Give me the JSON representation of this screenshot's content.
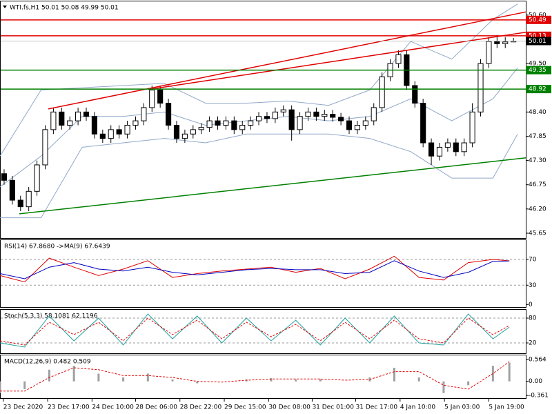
{
  "chart_data": [
    {
      "type": "candlestick",
      "title": "WTI.fs,H1  50.01 50.08 49.99 50.01",
      "xlim": [
        0,
        64
      ],
      "ylim": [
        45.54,
        50.91
      ],
      "yticks": [
        45.65,
        {
          "value": 46.2,
          "label": "46.20"
        },
        46.75,
        {
          "value": 47.3,
          "label": "47.30"
        },
        47.85,
        {
          "value": 48.4,
          "label": "48.40"
        },
        {
          "value": 49.5,
          "label": "49.50"
        },
        {
          "value": 50.6,
          "label": "50.60"
        }
      ],
      "xticks": [
        {
          "value": 0.4,
          "label": "23 Dec 2020"
        },
        {
          "value": 5.8,
          "label": "23 Dec 17:00"
        },
        {
          "value": 11.2,
          "label": "24 Dec 10:00"
        },
        {
          "value": 16.5,
          "label": "28 Dec 06:00"
        },
        {
          "value": 21.9,
          "label": "28 Dec 22:00"
        },
        {
          "value": 27.3,
          "label": "29 Dec 15:00"
        },
        {
          "value": 32.7,
          "label": "30 Dec 08:00"
        },
        {
          "value": 38.0,
          "label": "31 Dec 01:00"
        },
        {
          "value": 43.3,
          "label": "31 Dec 17:00"
        },
        {
          "value": 48.7,
          "label": "4 Jan 10:00"
        },
        {
          "value": 54.1,
          "label": "5 Jan 03:00"
        },
        {
          "value": 59.5,
          "label": "5 Jan 19:00"
        }
      ],
      "open": [
        47.0,
        46.85,
        46.4,
        46.25,
        46.6,
        47.2,
        48.0,
        48.4,
        48.1,
        48.2,
        48.4,
        48.3,
        47.9,
        47.8,
        48.0,
        47.9,
        48.1,
        48.2,
        48.5,
        48.9,
        48.6,
        48.1,
        47.8,
        47.9,
        48.0,
        48.05,
        48.2,
        48.1,
        48.2,
        48.0,
        48.1,
        48.2,
        48.3,
        48.25,
        48.4,
        48.45,
        48.0,
        48.3,
        48.4,
        48.3,
        48.35,
        48.28,
        48.2,
        48.0,
        48.1,
        48.2,
        48.5,
        49.2,
        49.5,
        49.7,
        49.0,
        48.6,
        47.7,
        47.4,
        47.6,
        47.7,
        47.5,
        47.7,
        48.4,
        49.5,
        50.0,
        49.95,
        49.99
      ],
      "high": [
        47.1,
        46.95,
        46.5,
        46.7,
        47.3,
        48.1,
        48.5,
        48.5,
        48.3,
        48.5,
        48.5,
        48.4,
        48.0,
        48.1,
        48.1,
        48.2,
        48.3,
        48.6,
        49.0,
        49.0,
        48.7,
        48.2,
        48.0,
        48.1,
        48.15,
        48.3,
        48.3,
        48.3,
        48.3,
        48.2,
        48.3,
        48.4,
        48.4,
        48.5,
        48.55,
        48.55,
        48.4,
        48.5,
        48.5,
        48.45,
        48.45,
        48.38,
        48.3,
        48.2,
        48.3,
        48.6,
        49.3,
        49.6,
        49.8,
        49.8,
        49.1,
        48.7,
        47.8,
        47.7,
        47.8,
        47.8,
        47.8,
        48.6,
        49.6,
        50.1,
        50.15,
        50.1,
        50.08
      ],
      "low": [
        46.75,
        46.3,
        46.15,
        46.15,
        46.5,
        47.1,
        47.9,
        48.0,
        48.0,
        48.1,
        48.2,
        47.8,
        47.7,
        47.7,
        47.8,
        47.8,
        48.0,
        48.1,
        48.4,
        48.5,
        48.0,
        47.7,
        47.7,
        47.8,
        47.9,
        47.95,
        48.0,
        48.0,
        47.9,
        47.9,
        48.0,
        48.1,
        48.15,
        48.15,
        48.3,
        47.75,
        47.9,
        48.2,
        48.2,
        48.2,
        48.18,
        48.1,
        47.9,
        47.9,
        48.0,
        48.1,
        48.4,
        49.1,
        49.4,
        48.9,
        48.5,
        47.6,
        47.2,
        47.3,
        47.5,
        47.4,
        47.4,
        47.6,
        48.3,
        49.4,
        49.85,
        49.85,
        49.99
      ],
      "close": [
        46.85,
        46.4,
        46.25,
        46.6,
        47.2,
        48.0,
        48.4,
        48.1,
        48.2,
        48.4,
        48.3,
        47.9,
        47.8,
        48.0,
        47.9,
        48.1,
        48.2,
        48.5,
        48.9,
        48.6,
        48.1,
        47.8,
        47.9,
        48.0,
        48.05,
        48.2,
        48.1,
        48.2,
        48.0,
        48.1,
        48.2,
        48.3,
        48.25,
        48.4,
        48.45,
        48.0,
        48.3,
        48.4,
        48.3,
        48.35,
        48.28,
        48.2,
        48.0,
        48.1,
        48.2,
        48.5,
        49.2,
        49.5,
        49.7,
        49.0,
        48.6,
        47.7,
        47.4,
        47.6,
        47.7,
        47.5,
        47.7,
        48.4,
        49.5,
        50.0,
        49.95,
        49.99,
        50.01
      ],
      "bands_x": [
        0,
        5,
        10,
        15,
        20,
        25,
        30,
        35,
        40,
        45,
        50,
        55,
        60,
        63
      ],
      "bands": [
        {
          "color": "#8fa8c8",
          "values": [
            47.4,
            48.9,
            48.95,
            49.0,
            49.05,
            48.6,
            48.6,
            48.65,
            48.55,
            48.9,
            50.0,
            49.6,
            50.5,
            50.85
          ]
        },
        {
          "color": "#8fa8c8",
          "values": [
            46.7,
            47.4,
            48.3,
            48.3,
            48.4,
            48.1,
            48.2,
            48.3,
            48.2,
            48.3,
            48.7,
            48.2,
            48.7,
            49.4
          ]
        },
        {
          "color": "#8fa8c8",
          "values": [
            46.0,
            46.0,
            47.6,
            47.7,
            47.8,
            47.7,
            47.9,
            47.9,
            47.9,
            47.8,
            47.5,
            46.9,
            46.9,
            47.9
          ]
        }
      ],
      "trendlines": [
        {
          "color": "#e00000",
          "x": [
            5.88,
            64
          ],
          "y": [
            48.47,
            50.67
          ]
        },
        {
          "color": "#e00000",
          "x": [
            18.06,
            64
          ],
          "y": [
            48.91,
            50.21
          ]
        },
        {
          "color": "#008000",
          "x": [
            2.35,
            64
          ],
          "y": [
            46.09,
            47.36
          ]
        }
      ],
      "levels": [
        {
          "value": 50.49,
          "color": "#e00000"
        },
        {
          "value": 50.13,
          "color": "#e00000"
        },
        {
          "value": 49.35,
          "color": "#008000"
        },
        {
          "value": 48.92,
          "color": "#008000"
        }
      ],
      "last_price": 50.01
    },
    {
      "type": "line",
      "title": "RSI(14) 67.8680  ->MA(9) 67.6439",
      "ylim": [
        -4,
        100
      ],
      "yticks": [
        0,
        30,
        70
      ],
      "dashed_levels": [
        30,
        70
      ],
      "x": [
        0,
        3,
        6,
        9,
        12,
        15,
        18,
        21,
        24,
        27,
        30,
        33,
        36,
        39,
        42,
        45,
        48,
        51,
        54,
        57,
        60,
        62
      ],
      "series": [
        {
          "color": "#e00000",
          "values": [
            45,
            35,
            72,
            58,
            45,
            55,
            68,
            42,
            48,
            52,
            55,
            58,
            50,
            56,
            40,
            55,
            75,
            42,
            38,
            65,
            70,
            67.87
          ]
        },
        {
          "color": "#0000c0",
          "values": [
            48,
            40,
            58,
            65,
            55,
            52,
            58,
            50,
            46,
            50,
            54,
            56,
            54,
            54,
            48,
            50,
            68,
            52,
            42,
            50,
            67,
            67.64
          ]
        }
      ]
    },
    {
      "type": "line",
      "title": "Stoch(5,3,3) 58.1081 62.1196",
      "ylim": [
        -5,
        100
      ],
      "yticks": [
        20,
        80
      ],
      "dashed_levels": [
        20,
        80
      ],
      "x": [
        0,
        3,
        6,
        9,
        12,
        15,
        18,
        21,
        24,
        27,
        30,
        33,
        36,
        39,
        42,
        45,
        48,
        51,
        54,
        57,
        60,
        62
      ],
      "series": [
        {
          "color": "#20a0a0",
          "values": [
            20,
            10,
            85,
            25,
            80,
            15,
            90,
            30,
            85,
            20,
            80,
            25,
            75,
            15,
            80,
            20,
            85,
            20,
            15,
            90,
            30,
            58.11
          ]
        },
        {
          "color": "#e00000",
          "dash": true,
          "values": [
            25,
            15,
            70,
            40,
            70,
            25,
            80,
            40,
            75,
            30,
            70,
            35,
            65,
            25,
            70,
            30,
            75,
            30,
            20,
            80,
            40,
            62.12
          ]
        }
      ]
    },
    {
      "type": "macd",
      "title": "MACD(12,26,9) 0.482 0.509",
      "ylim": [
        -0.431,
        0.669
      ],
      "yticks": [
        0.564,
        {
          "value": 0,
          "label": "0.00"
        },
        -0.361
      ],
      "x": [
        0,
        3,
        6,
        9,
        12,
        15,
        18,
        21,
        24,
        27,
        30,
        33,
        36,
        39,
        42,
        45,
        48,
        51,
        54,
        57,
        60,
        62
      ],
      "series": [
        {
          "color": "#a0a0a0",
          "values": [
            -0.3,
            -0.2,
            0.3,
            0.4,
            0.2,
            0.1,
            0.2,
            0.05,
            -0.05,
            0.0,
            0.05,
            0.08,
            0.05,
            0.06,
            0.0,
            0.1,
            0.35,
            0.1,
            -0.3,
            -0.1,
            0.4,
            0.482
          ]
        },
        {
          "color": "#e00000",
          "dash": true,
          "values": [
            -0.25,
            -0.25,
            0.1,
            0.35,
            0.3,
            0.15,
            0.15,
            0.1,
            0.0,
            -0.02,
            0.03,
            0.06,
            0.06,
            0.06,
            0.03,
            0.05,
            0.25,
            0.25,
            -0.1,
            -0.2,
            0.2,
            0.509
          ]
        }
      ]
    }
  ]
}
